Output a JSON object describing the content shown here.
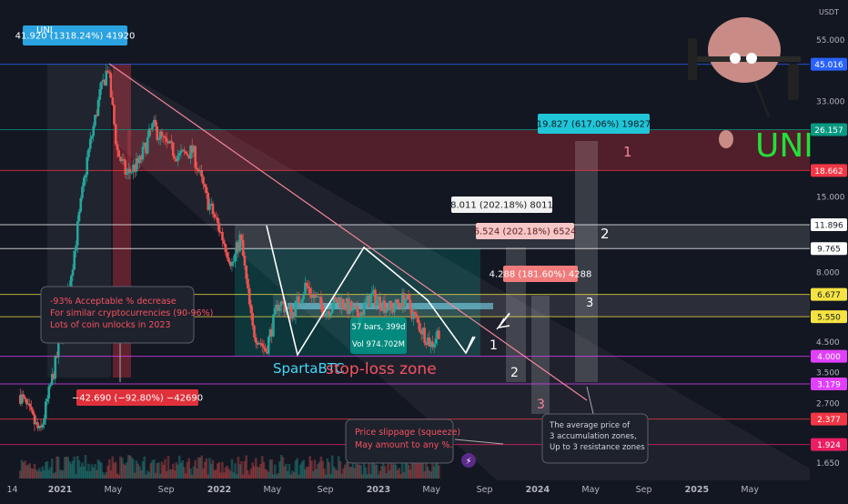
{
  "chart_data": {
    "type": "candlestick",
    "symbol": "UNI",
    "currency_label": "USDT",
    "x_ticks": [
      "14",
      "2021",
      "May",
      "Sep",
      "2022",
      "May",
      "Sep",
      "2023",
      "May",
      "Sep",
      "2024",
      "May",
      "Sep",
      "2025",
      "May"
    ],
    "y_ticks": [
      55.0,
      33.0,
      15.0,
      8.0,
      4.5,
      3.5,
      2.7,
      1.65
    ],
    "y_tick_labels": [
      "55.000",
      "33.000",
      "15.000",
      "8.000",
      "4.500",
      "3.500",
      "2.700",
      "1.650"
    ],
    "ylim": [
      1.5,
      80
    ],
    "price_levels": [
      {
        "value": 45.016,
        "label": "45.016",
        "color": "#2962ff"
      },
      {
        "value": 26.157,
        "label": "26.157",
        "color": "#089981"
      },
      {
        "value": 18.662,
        "label": "18.662",
        "color": "#f23645"
      },
      {
        "value": 11.896,
        "label": "11.896",
        "color": "#ffffff"
      },
      {
        "value": 9.765,
        "label": "9.765",
        "color": "#ffffff"
      },
      {
        "value": 6.677,
        "label": "6.677",
        "color": "#f5e342"
      },
      {
        "value": 5.55,
        "label": "5.550",
        "color": "#f5e342"
      },
      {
        "value": 4.0,
        "label": "4.000",
        "color": "#e040fb"
      },
      {
        "value": 3.179,
        "label": "3.179",
        "color": "#e040fb"
      },
      {
        "value": 2.377,
        "label": "2.377",
        "color": "#f23645"
      },
      {
        "value": 1.924,
        "label": "1.924",
        "color": "#e91e63"
      }
    ],
    "measure_labels": [
      {
        "text": "41.920 (1318.24%) 41920",
        "color": "#2aa3e0"
      },
      {
        "text": "−42.690 (−92.80%) −42690",
        "color": "#e0313b"
      },
      {
        "text": "19.827 (617.06%) 19827",
        "color": "#20c5d8"
      },
      {
        "text": "8.011 (202.18%) 8011",
        "color": "#f2f2f2"
      },
      {
        "text": "6.524 (202.18%) 6524",
        "color": "#f7c7c7"
      },
      {
        "text": "4.288 (181.60%) 4288",
        "color": "#f07b7b"
      }
    ],
    "annotations": {
      "left_box": [
        "-93% Acceptable % decrease",
        "For similar cryptocurrencies (90-96%)",
        "Lots of coin unlocks in 2023"
      ],
      "slippage_box": [
        "Price slippage (squeeze)",
        "May amount to any %."
      ],
      "average_box": [
        "The average price of",
        "3 accumulation zones,",
        "Up to 3 resistance zones"
      ],
      "bars_info": "57 bars, 399d",
      "vol_info": "Vol 974.702M",
      "author": "SpartaBTC",
      "stop_loss": "stop-loss zone",
      "zone_numbers": [
        "1",
        "2",
        "3",
        "1",
        "2",
        "3",
        "1"
      ],
      "big_ticker": "UNI",
      "symbol_label": "UNI"
    }
  }
}
